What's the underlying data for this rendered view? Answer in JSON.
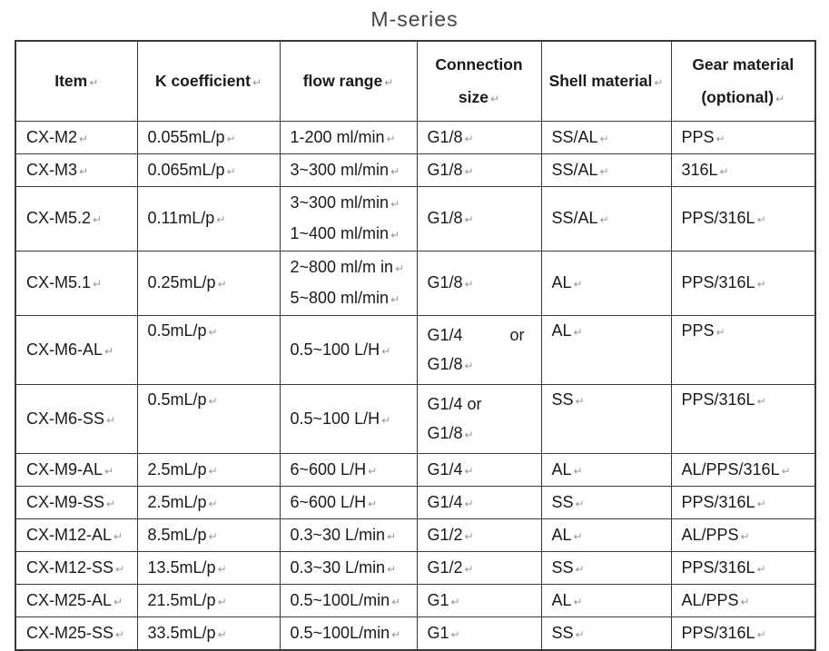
{
  "title": "M-series",
  "pilcrow": "↵",
  "colors": {
    "border": "#3a3a3e",
    "text": "#1a1a1e",
    "pil": "#8e97a8",
    "title": "#454545",
    "bg": "#ffffff"
  },
  "table": {
    "headers": [
      {
        "id": "item",
        "lines": [
          "Item"
        ]
      },
      {
        "id": "k-coefficient",
        "lines": [
          "K coefficient"
        ]
      },
      {
        "id": "flow-range",
        "lines": [
          "flow range"
        ]
      },
      {
        "id": "connection-size",
        "lines": [
          "Connection",
          "size"
        ]
      },
      {
        "id": "shell-material",
        "lines": [
          "Shell material"
        ]
      },
      {
        "id": "gear-material",
        "lines": [
          "Gear material",
          "(optional)"
        ]
      }
    ],
    "rows": [
      {
        "item": "CX-M2",
        "k": "0.055mL/p",
        "flow": [
          "1-200 ml/min"
        ],
        "conn": [
          "G1/8"
        ],
        "shell": "SS/AL",
        "gear": "PPS"
      },
      {
        "item": "CX-M3",
        "k": "0.065mL/p",
        "flow": [
          "3~300 ml/min"
        ],
        "conn": [
          "G1/8"
        ],
        "shell": "SS/AL",
        "gear": "316L"
      },
      {
        "item": "CX-M5.2",
        "k": "0.11mL/p",
        "flow": [
          "3~300 ml/min",
          "1~400 ml/min"
        ],
        "conn": [
          "G1/8"
        ],
        "shell": "SS/AL",
        "gear": "PPS/316L"
      },
      {
        "item": "CX-M5.1",
        "k": "0.25mL/p",
        "flow": [
          "2~800 ml/m in",
          "5~800 ml/min"
        ],
        "conn": [
          "G1/8"
        ],
        "shell": "AL",
        "gear": "PPS/316L"
      },
      {
        "item": "CX-M6-AL",
        "k": "0.5mL/p",
        "flow": [
          "0.5~100 L/H"
        ],
        "conn": [
          {
            "split": [
              "G1/4",
              "or"
            ]
          },
          "G1/8"
        ],
        "shell": "AL",
        "gear": "PPS"
      },
      {
        "item": "CX-M6-SS",
        "k": "0.5mL/p",
        "flow": [
          "0.5~100 L/H"
        ],
        "conn": [
          "G1/4 or",
          "G1/8"
        ],
        "shell": "SS",
        "gear": "PPS/316L"
      },
      {
        "item": "CX-M9-AL",
        "k": "2.5mL/p",
        "flow": [
          "6~600 L/H"
        ],
        "conn": [
          "G1/4"
        ],
        "shell": "AL",
        "gear": "AL/PPS/316L"
      },
      {
        "item": "CX-M9-SS",
        "k": "2.5mL/p",
        "flow": [
          "6~600 L/H"
        ],
        "conn": [
          "G1/4"
        ],
        "shell": "SS",
        "gear": "PPS/316L"
      },
      {
        "item": "CX-M12-AL",
        "k": "8.5mL/p",
        "flow": [
          "0.3~30 L/min"
        ],
        "conn": [
          "G1/2"
        ],
        "shell": "AL",
        "gear": "AL/PPS"
      },
      {
        "item": "CX-M12-SS",
        "k": "13.5mL/p",
        "flow": [
          "0.3~30 L/min"
        ],
        "conn": [
          "G1/2"
        ],
        "shell": "SS",
        "gear": "PPS/316L"
      },
      {
        "item": "CX-M25-AL",
        "k": "21.5mL/p",
        "flow": [
          "0.5~100L/min"
        ],
        "conn": [
          "G1"
        ],
        "shell": "AL",
        "gear": "AL/PPS"
      },
      {
        "item": "CX-M25-SS",
        "k": "33.5mL/p",
        "flow": [
          "0.5~100L/min"
        ],
        "conn": [
          "G1"
        ],
        "shell": "SS",
        "gear": "PPS/316L"
      }
    ]
  }
}
